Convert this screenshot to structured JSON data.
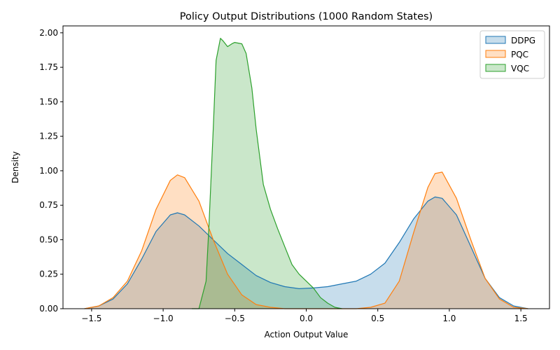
{
  "chart_data": {
    "type": "area",
    "title": "Policy Output Distributions (1000 Random States)",
    "xlabel": "Action Output Value",
    "ylabel": "Density",
    "xlim": [
      -1.7,
      1.7
    ],
    "ylim": [
      0,
      2.05
    ],
    "xticks": [
      -1.5,
      -1.0,
      -0.5,
      0.0,
      0.5,
      1.0,
      1.5
    ],
    "xtick_labels": [
      "−1.5",
      "−1.0",
      "−0.5",
      "0.0",
      "0.5",
      "1.0",
      "1.5"
    ],
    "yticks": [
      0,
      0.25,
      0.5,
      0.75,
      1.0,
      1.25,
      1.5,
      1.75,
      2.0
    ],
    "ytick_labels": [
      "0.00",
      "0.25",
      "0.50",
      "0.75",
      "1.00",
      "1.25",
      "1.50",
      "1.75",
      "2.00"
    ],
    "grid": false,
    "legend_position": "top-right",
    "series": [
      {
        "name": "DDPG",
        "color": "#1f77b4",
        "x": [
          -1.55,
          -1.45,
          -1.35,
          -1.25,
          -1.15,
          -1.05,
          -0.95,
          -0.9,
          -0.85,
          -0.75,
          -0.65,
          -0.55,
          -0.45,
          -0.35,
          -0.25,
          -0.15,
          -0.05,
          0.05,
          0.15,
          0.25,
          0.35,
          0.45,
          0.55,
          0.65,
          0.75,
          0.85,
          0.9,
          0.95,
          1.05,
          1.15,
          1.25,
          1.35,
          1.45,
          1.55
        ],
        "y": [
          0.0,
          0.02,
          0.07,
          0.18,
          0.36,
          0.56,
          0.68,
          0.695,
          0.68,
          0.6,
          0.5,
          0.4,
          0.32,
          0.24,
          0.19,
          0.16,
          0.145,
          0.15,
          0.16,
          0.18,
          0.2,
          0.25,
          0.33,
          0.48,
          0.65,
          0.78,
          0.81,
          0.8,
          0.68,
          0.45,
          0.22,
          0.08,
          0.02,
          0.0
        ]
      },
      {
        "name": "PQC",
        "color": "#ff7f0e",
        "x": [
          -1.55,
          -1.45,
          -1.35,
          -1.25,
          -1.15,
          -1.05,
          -0.95,
          -0.9,
          -0.85,
          -0.75,
          -0.65,
          -0.55,
          -0.45,
          -0.35,
          -0.25,
          -0.15,
          -0.05,
          0.05,
          0.15,
          0.25,
          0.35,
          0.45,
          0.55,
          0.65,
          0.75,
          0.85,
          0.9,
          0.95,
          1.05,
          1.15,
          1.25,
          1.35,
          1.45,
          1.55
        ],
        "y": [
          0.0,
          0.02,
          0.08,
          0.2,
          0.42,
          0.72,
          0.93,
          0.97,
          0.95,
          0.78,
          0.5,
          0.25,
          0.1,
          0.03,
          0.01,
          0.0,
          0.0,
          0.0,
          0.0,
          0.0,
          0.0,
          0.01,
          0.04,
          0.2,
          0.55,
          0.88,
          0.98,
          0.99,
          0.8,
          0.5,
          0.22,
          0.07,
          0.01,
          0.0
        ]
      },
      {
        "name": "VQC",
        "color": "#2ca02c",
        "x": [
          -0.8,
          -0.75,
          -0.7,
          -0.68,
          -0.65,
          -0.63,
          -0.6,
          -0.58,
          -0.55,
          -0.52,
          -0.5,
          -0.45,
          -0.42,
          -0.38,
          -0.35,
          -0.3,
          -0.25,
          -0.2,
          -0.15,
          -0.1,
          -0.05,
          0.0,
          0.05,
          0.1,
          0.15,
          0.2,
          0.25
        ],
        "y": [
          0.0,
          0.0,
          0.2,
          0.6,
          1.3,
          1.8,
          1.96,
          1.94,
          1.9,
          1.92,
          1.93,
          1.92,
          1.85,
          1.6,
          1.3,
          0.9,
          0.72,
          0.58,
          0.45,
          0.32,
          0.25,
          0.2,
          0.15,
          0.08,
          0.04,
          0.01,
          0.0
        ]
      }
    ]
  }
}
